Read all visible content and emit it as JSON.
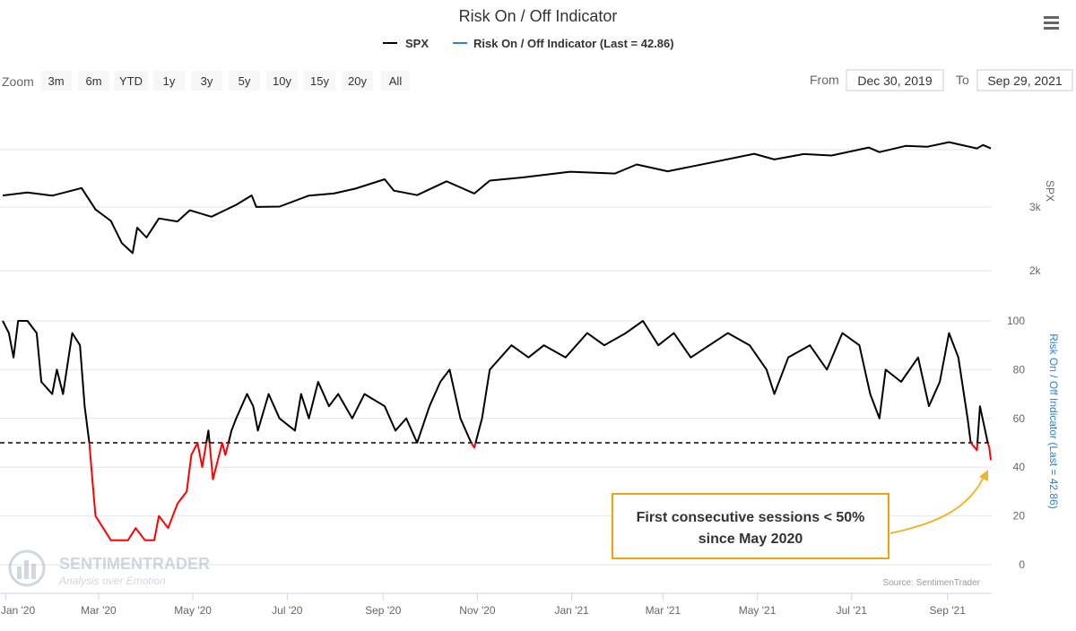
{
  "title": "Risk On / Off Indicator",
  "legend": [
    {
      "label": "SPX",
      "color": "#000000"
    },
    {
      "label": "Risk On / Off Indicator (Last = 42.86)",
      "color": "#2f7ed8"
    }
  ],
  "menu_icon": "hamburger-menu-icon",
  "zoom": {
    "label": "Zoom",
    "buttons": [
      "3m",
      "6m",
      "YTD",
      "1y",
      "3y",
      "5y",
      "10y",
      "15y",
      "20y",
      "All"
    ]
  },
  "range": {
    "from_label": "From",
    "from_value": "Dec 30, 2019",
    "to_label": "To",
    "to_value": "Sep 29, 2021"
  },
  "annotation": "First consecutive sessions < 50%\nsince May 2020",
  "source": "Source: SentimenTrader",
  "watermark": {
    "name": "SENTIMENTRADER",
    "tagline": "Analysis over Emotion"
  },
  "colors": {
    "spx": "#000000",
    "indicator": "#000000",
    "below_threshold": "#ff0000",
    "annotation_border": "#f0a30a",
    "arrow": "#f0b429",
    "axis_title": "#2f7ed8"
  },
  "chart_data": {
    "type": "line",
    "x_range": [
      "2019-12-30",
      "2021-09-29"
    ],
    "x_tick_labels": [
      "Jan '20",
      "Mar '20",
      "May '20",
      "Jul '20",
      "Sep '20",
      "Nov '20",
      "Jan '21",
      "Mar '21",
      "May '21",
      "Jul '21",
      "Sep '21"
    ],
    "panels": [
      {
        "series_name": "SPX",
        "axis_title": "SPX",
        "y_ticks": [
          "2k",
          "3k"
        ],
        "scale": "log",
        "points": [
          [
            "2019-12-30",
            3230
          ],
          [
            "2020-01-15",
            3290
          ],
          [
            "2020-01-31",
            3225
          ],
          [
            "2020-02-19",
            3386
          ],
          [
            "2020-02-28",
            2954
          ],
          [
            "2020-03-09",
            2746
          ],
          [
            "2020-03-16",
            2386
          ],
          [
            "2020-03-23",
            2237
          ],
          [
            "2020-03-26",
            2630
          ],
          [
            "2020-04-01",
            2470
          ],
          [
            "2020-04-09",
            2790
          ],
          [
            "2020-04-21",
            2737
          ],
          [
            "2020-04-29",
            2939
          ],
          [
            "2020-05-13",
            2820
          ],
          [
            "2020-05-29",
            3044
          ],
          [
            "2020-06-08",
            3232
          ],
          [
            "2020-06-11",
            3002
          ],
          [
            "2020-06-26",
            3009
          ],
          [
            "2020-07-15",
            3227
          ],
          [
            "2020-07-31",
            3271
          ],
          [
            "2020-08-14",
            3372
          ],
          [
            "2020-09-02",
            3580
          ],
          [
            "2020-09-08",
            3331
          ],
          [
            "2020-09-23",
            3237
          ],
          [
            "2020-10-12",
            3534
          ],
          [
            "2020-10-30",
            3270
          ],
          [
            "2020-11-09",
            3550
          ],
          [
            "2020-11-30",
            3622
          ],
          [
            "2020-12-31",
            3756
          ],
          [
            "2021-01-29",
            3714
          ],
          [
            "2021-02-12",
            3934
          ],
          [
            "2021-03-04",
            3768
          ],
          [
            "2021-03-31",
            3973
          ],
          [
            "2021-04-29",
            4211
          ],
          [
            "2021-05-12",
            4063
          ],
          [
            "2021-05-31",
            4204
          ],
          [
            "2021-06-18",
            4166
          ],
          [
            "2021-07-12",
            4384
          ],
          [
            "2021-07-19",
            4258
          ],
          [
            "2021-08-05",
            4429
          ],
          [
            "2021-08-19",
            4405
          ],
          [
            "2021-09-02",
            4537
          ],
          [
            "2021-09-20",
            4358
          ],
          [
            "2021-09-24",
            4455
          ],
          [
            "2021-09-29",
            4359
          ]
        ]
      },
      {
        "series_name": "Risk On / Off Indicator (Last = 42.86)",
        "axis_title": "Risk On / Off Indicator (Last = 42.86)",
        "y_ticks": [
          0,
          20,
          40,
          60,
          80,
          100
        ],
        "ylim": [
          0,
          100
        ],
        "threshold": 50,
        "last": 42.86,
        "points": [
          [
            "2019-12-30",
            100
          ],
          [
            "2020-01-03",
            95
          ],
          [
            "2020-01-06",
            85
          ],
          [
            "2020-01-09",
            100
          ],
          [
            "2020-01-15",
            100
          ],
          [
            "2020-01-21",
            95
          ],
          [
            "2020-01-24",
            75
          ],
          [
            "2020-01-31",
            70
          ],
          [
            "2020-02-03",
            80
          ],
          [
            "2020-02-07",
            70
          ],
          [
            "2020-02-13",
            95
          ],
          [
            "2020-02-18",
            90
          ],
          [
            "2020-02-21",
            65
          ],
          [
            "2020-02-24",
            50
          ],
          [
            "2020-02-26",
            35
          ],
          [
            "2020-02-28",
            20
          ],
          [
            "2020-03-04",
            15
          ],
          [
            "2020-03-09",
            10
          ],
          [
            "2020-03-16",
            10
          ],
          [
            "2020-03-20",
            10
          ],
          [
            "2020-03-25",
            15
          ],
          [
            "2020-03-31",
            10
          ],
          [
            "2020-04-06",
            10
          ],
          [
            "2020-04-09",
            20
          ],
          [
            "2020-04-15",
            15
          ],
          [
            "2020-04-21",
            25
          ],
          [
            "2020-04-27",
            30
          ],
          [
            "2020-04-30",
            45
          ],
          [
            "2020-05-04",
            50
          ],
          [
            "2020-05-07",
            40
          ],
          [
            "2020-05-11",
            55
          ],
          [
            "2020-05-14",
            35
          ],
          [
            "2020-05-18",
            45
          ],
          [
            "2020-05-20",
            50
          ],
          [
            "2020-05-22",
            45
          ],
          [
            "2020-05-26",
            55
          ],
          [
            "2020-05-29",
            60
          ],
          [
            "2020-06-05",
            70
          ],
          [
            "2020-06-09",
            65
          ],
          [
            "2020-06-12",
            55
          ],
          [
            "2020-06-19",
            70
          ],
          [
            "2020-06-26",
            60
          ],
          [
            "2020-07-06",
            55
          ],
          [
            "2020-07-10",
            70
          ],
          [
            "2020-07-15",
            60
          ],
          [
            "2020-07-21",
            75
          ],
          [
            "2020-07-28",
            65
          ],
          [
            "2020-08-03",
            70
          ],
          [
            "2020-08-12",
            60
          ],
          [
            "2020-08-20",
            70
          ],
          [
            "2020-09-02",
            65
          ],
          [
            "2020-09-09",
            55
          ],
          [
            "2020-09-16",
            60
          ],
          [
            "2020-09-23",
            50
          ],
          [
            "2020-10-01",
            65
          ],
          [
            "2020-10-08",
            75
          ],
          [
            "2020-10-14",
            80
          ],
          [
            "2020-10-21",
            60
          ],
          [
            "2020-10-28",
            50
          ],
          [
            "2020-10-30",
            48
          ],
          [
            "2020-11-04",
            60
          ],
          [
            "2020-11-09",
            80
          ],
          [
            "2020-11-16",
            85
          ],
          [
            "2020-11-23",
            90
          ],
          [
            "2020-12-04",
            85
          ],
          [
            "2020-12-14",
            90
          ],
          [
            "2020-12-28",
            85
          ],
          [
            "2021-01-11",
            95
          ],
          [
            "2021-01-22",
            90
          ],
          [
            "2021-02-05",
            95
          ],
          [
            "2021-02-16",
            100
          ],
          [
            "2021-02-26",
            90
          ],
          [
            "2021-03-08",
            95
          ],
          [
            "2021-03-19",
            85
          ],
          [
            "2021-03-31",
            90
          ],
          [
            "2021-04-12",
            95
          ],
          [
            "2021-04-26",
            90
          ],
          [
            "2021-05-07",
            80
          ],
          [
            "2021-05-12",
            70
          ],
          [
            "2021-05-21",
            85
          ],
          [
            "2021-06-04",
            90
          ],
          [
            "2021-06-15",
            80
          ],
          [
            "2021-06-25",
            95
          ],
          [
            "2021-07-06",
            90
          ],
          [
            "2021-07-13",
            70
          ],
          [
            "2021-07-19",
            60
          ],
          [
            "2021-07-23",
            80
          ],
          [
            "2021-08-02",
            75
          ],
          [
            "2021-08-13",
            85
          ],
          [
            "2021-08-20",
            65
          ],
          [
            "2021-08-27",
            75
          ],
          [
            "2021-09-02",
            95
          ],
          [
            "2021-09-08",
            85
          ],
          [
            "2021-09-14",
            60
          ],
          [
            "2021-09-16",
            50
          ],
          [
            "2021-09-20",
            47
          ],
          [
            "2021-09-22",
            65
          ],
          [
            "2021-09-27",
            50
          ],
          [
            "2021-09-28",
            48
          ],
          [
            "2021-09-29",
            42.86
          ]
        ]
      }
    ]
  }
}
